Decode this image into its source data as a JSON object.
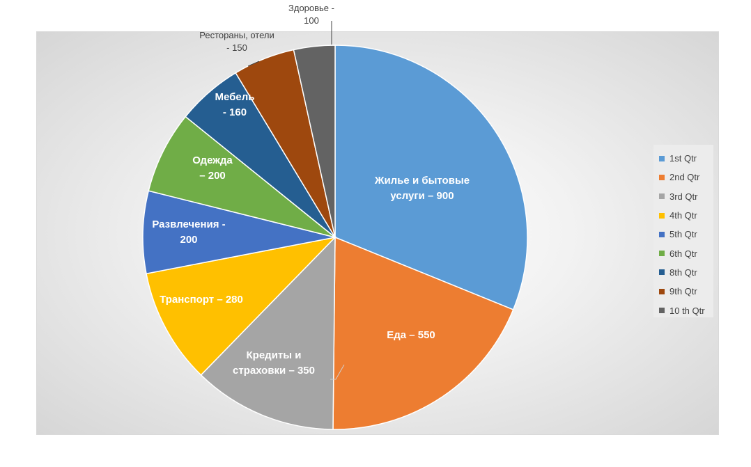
{
  "chart_data": {
    "type": "pie",
    "slices": [
      {
        "label_lines": [
          "Жилье и бытовые",
          "услуги – 900"
        ],
        "value": 900,
        "color": "#5b9bd5",
        "legend": "1st Qtr"
      },
      {
        "label_lines": [
          "Еда – 550"
        ],
        "value": 550,
        "color": "#ed7d31",
        "legend": "2nd Qtr"
      },
      {
        "label_lines": [
          "Кредиты и",
          "страховки – 350"
        ],
        "value": 350,
        "color": "#a5a5a5",
        "legend": "3rd Qtr"
      },
      {
        "label_lines": [
          "Транспорт – 280"
        ],
        "value": 280,
        "color": "#ffc000",
        "legend": "4th Qtr"
      },
      {
        "label_lines": [
          "Развлечения -",
          "200"
        ],
        "value": 200,
        "color": "#4472c4",
        "legend": "5th Qtr"
      },
      {
        "label_lines": [
          "Одежда",
          "– 200"
        ],
        "value": 200,
        "color": "#70ad47",
        "legend": "6th Qtr"
      },
      {
        "label_lines": [
          "Мебель",
          "- 160"
        ],
        "value": 160,
        "color": "#255e91",
        "legend": "8th Qtr"
      },
      {
        "label_lines": [
          "Рестораны, отели",
          "- 150"
        ],
        "value": 150,
        "color": "#9e480e",
        "legend": "9th Qtr"
      },
      {
        "label_lines": [
          "Здоровье -",
          "100"
        ],
        "value": 100,
        "color": "#636363",
        "legend": "10 th Qtr"
      }
    ],
    "legend_position": "right"
  }
}
